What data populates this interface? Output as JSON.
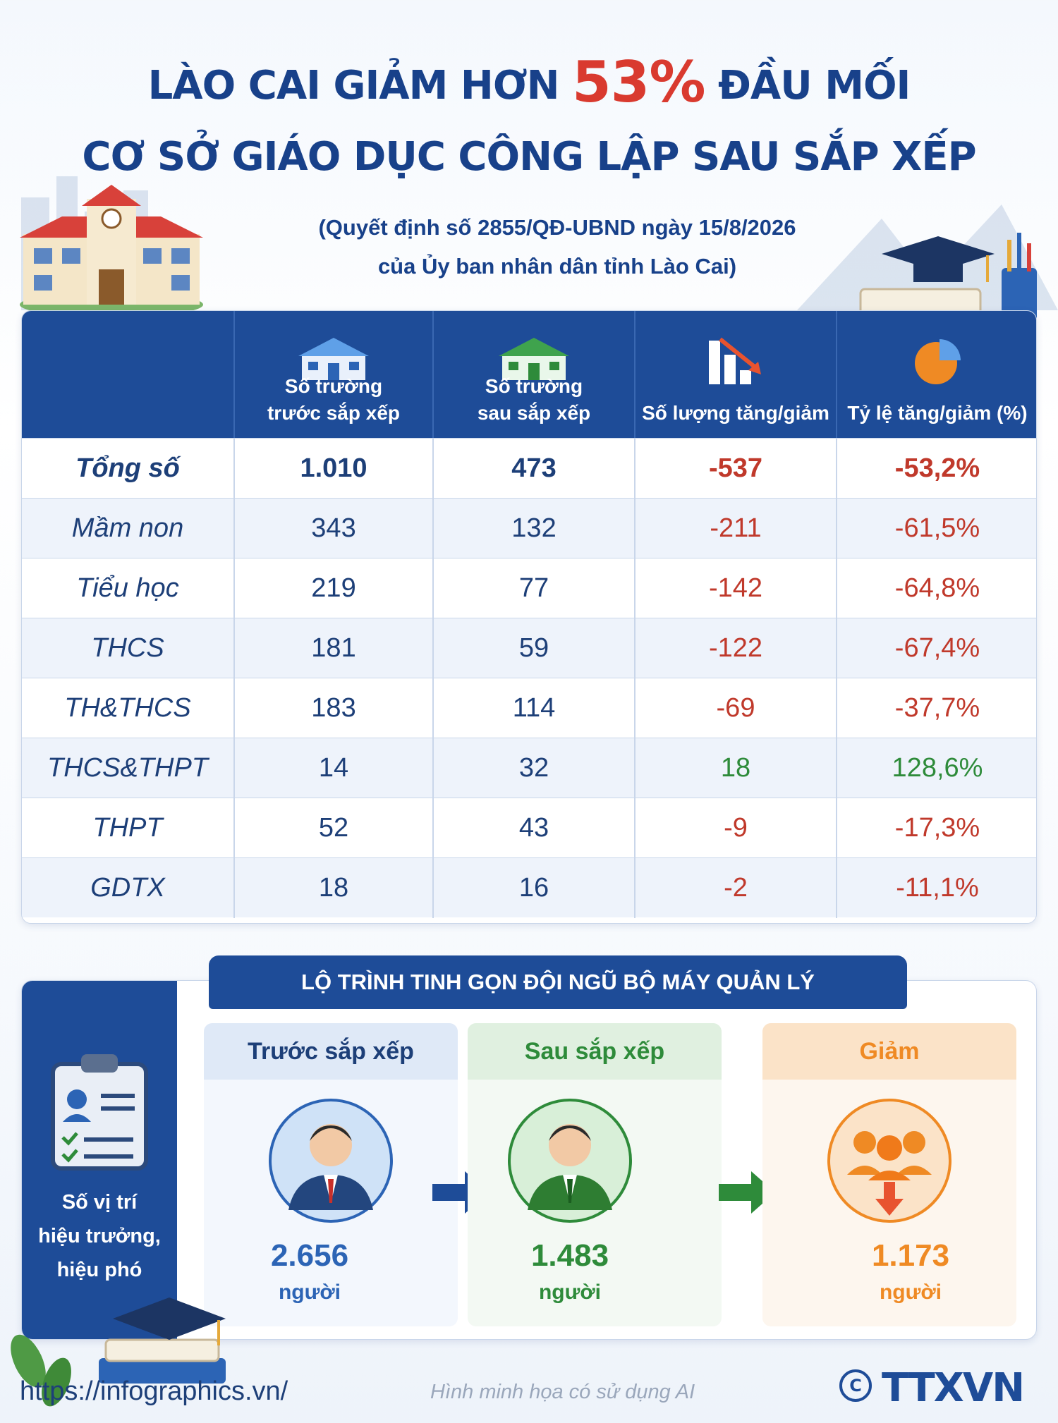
{
  "header": {
    "title_part1": "LÀO CAI GIẢM HƠN ",
    "title_highlight": "53%",
    "title_part2": " ĐẦU MỐI",
    "title_line2": "CƠ SỞ GIÁO DỤC CÔNG LẬP SAU SẮP XẾP",
    "subtitle_line1": "(Quyết định số 2855/QĐ-UBND ngày 15/8/2026",
    "subtitle_line2": "của Ủy ban nhân dân tỉnh Lào Cai)"
  },
  "table": {
    "columns": [
      {
        "line1": "Số trường",
        "line2": "trước sắp xếp",
        "icon": "school-blue-icon"
      },
      {
        "line1": "Số trường",
        "line2": "sau sắp xếp",
        "icon": "school-green-icon"
      },
      {
        "line1": "",
        "line2": "Số lượng tăng/giảm",
        "icon": "bar-chart-down-icon"
      },
      {
        "line1": "",
        "line2": "Tỷ lệ tăng/giảm (%)",
        "icon": "pie-chart-icon"
      }
    ],
    "rows": [
      {
        "label": "Tổng số",
        "before": "1.010",
        "after": "473",
        "change": "-537",
        "pct": "-53,2%"
      },
      {
        "label": "Mầm non",
        "before": "343",
        "after": "132",
        "change": "-211",
        "pct": "-61,5%"
      },
      {
        "label": "Tiểu học",
        "before": "219",
        "after": "77",
        "change": "-142",
        "pct": "-64,8%"
      },
      {
        "label": "THCS",
        "before": "181",
        "after": "59",
        "change": "-122",
        "pct": "-67,4%"
      },
      {
        "label": "TH&THCS",
        "before": "183",
        "after": "114",
        "change": "-69",
        "pct": "-37,7%"
      },
      {
        "label": "THCS&THPT",
        "before": "14",
        "after": "32",
        "change": "18",
        "pct": "128,6%"
      },
      {
        "label": "THPT",
        "before": "52",
        "after": "43",
        "change": "-9",
        "pct": "-17,3%"
      },
      {
        "label": "GDTX",
        "before": "18",
        "after": "16",
        "change": "-2",
        "pct": "-11,1%"
      }
    ]
  },
  "roadmap": {
    "banner": "LỘ TRÌNH TINH GỌN ĐỘI NGŨ BỘ MÁY QUẢN LÝ",
    "left_label_1": "Số vị trí",
    "left_label_2": "hiệu trưởng,",
    "left_label_3": "hiệu phó",
    "before": {
      "heading": "Trước sắp xếp",
      "value": "2.656",
      "unit": "người"
    },
    "after": {
      "heading": "Sau sắp xếp",
      "value": "1.483",
      "unit": "người"
    },
    "reduced": {
      "heading": "Giảm",
      "value": "1.173",
      "unit": "người"
    }
  },
  "footer": {
    "url": "https://infographics.vn/",
    "note": "Hình minh họa có sử dụng AI",
    "brand": "TTXVN",
    "copyright": "©"
  },
  "colors": {
    "navy": "#1e4c98",
    "red": "#c0392b",
    "green": "#2e8b3a",
    "orange": "#ef8a24"
  }
}
